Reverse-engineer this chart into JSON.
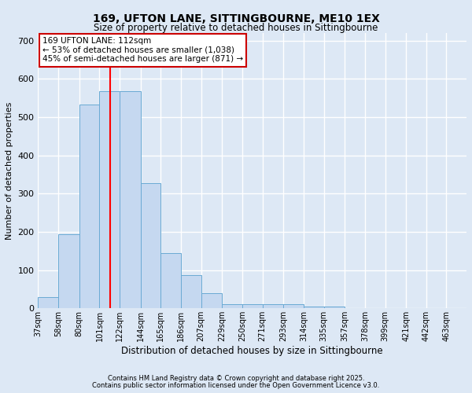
{
  "title1": "169, UFTON LANE, SITTINGBOURNE, ME10 1EX",
  "title2": "Size of property relative to detached houses in Sittingbourne",
  "xlabel": "Distribution of detached houses by size in Sittingbourne",
  "ylabel": "Number of detached properties",
  "bin_labels": [
    "37sqm",
    "58sqm",
    "80sqm",
    "101sqm",
    "122sqm",
    "144sqm",
    "165sqm",
    "186sqm",
    "207sqm",
    "229sqm",
    "250sqm",
    "271sqm",
    "293sqm",
    "314sqm",
    "335sqm",
    "357sqm",
    "378sqm",
    "399sqm",
    "421sqm",
    "442sqm",
    "463sqm"
  ],
  "bar_heights": [
    30,
    193,
    533,
    568,
    568,
    328,
    145,
    87,
    40,
    12,
    10,
    10,
    10,
    5,
    5,
    0,
    0,
    0,
    0,
    0,
    0
  ],
  "bin_edges": [
    37,
    58,
    80,
    101,
    122,
    144,
    165,
    186,
    207,
    229,
    250,
    271,
    293,
    314,
    335,
    357,
    378,
    399,
    421,
    442,
    463
  ],
  "bar_color": "#c5d8f0",
  "bar_edge_color": "#6aaad4",
  "red_line_x": 112,
  "annotation_text": "169 UFTON LANE: 112sqm\n← 53% of detached houses are smaller (1,038)\n45% of semi-detached houses are larger (871) →",
  "annotation_box_facecolor": "#ffffff",
  "annotation_box_edgecolor": "#cc0000",
  "ylim": [
    0,
    720
  ],
  "yticks": [
    0,
    100,
    200,
    300,
    400,
    500,
    600,
    700
  ],
  "background_color": "#dde8f5",
  "grid_color": "#ffffff",
  "footer1": "Contains HM Land Registry data © Crown copyright and database right 2025.",
  "footer2": "Contains public sector information licensed under the Open Government Licence v3.0."
}
